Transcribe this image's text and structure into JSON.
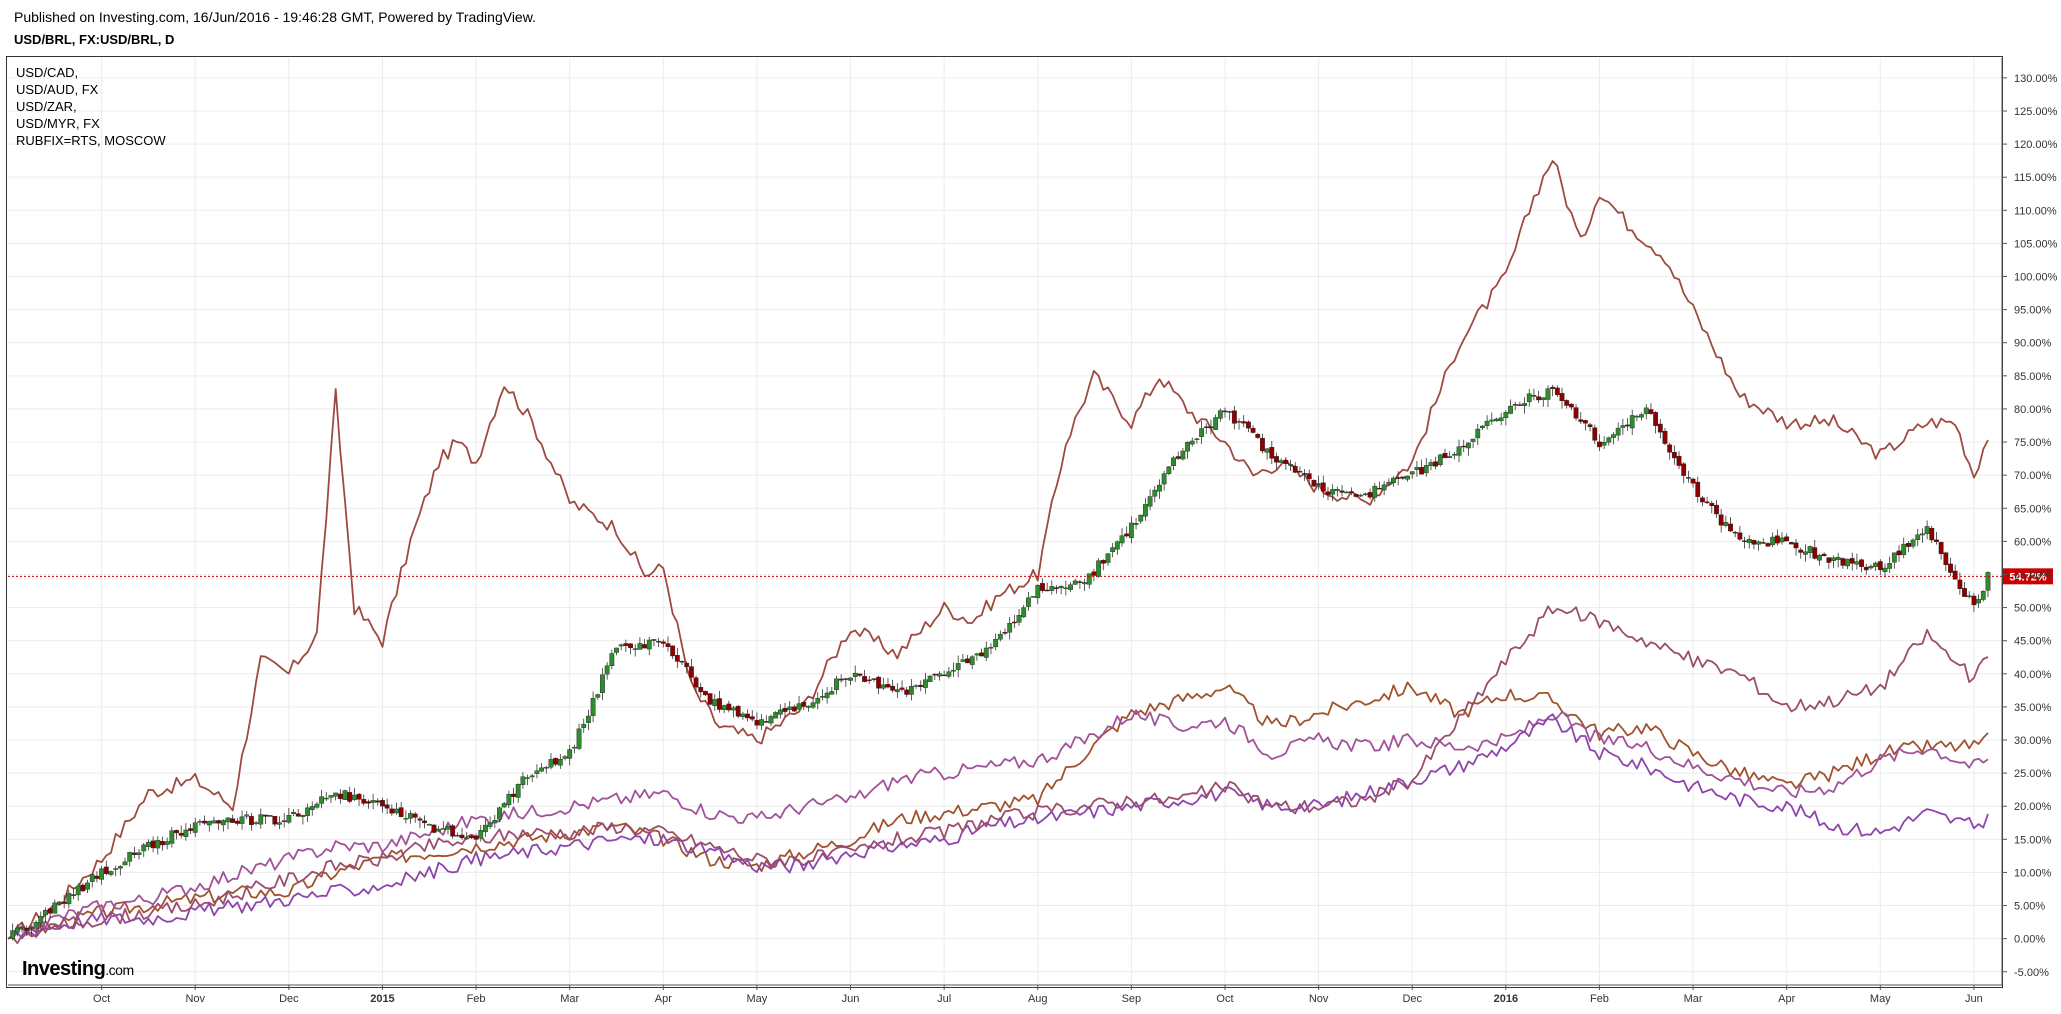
{
  "header": {
    "published": "Published on Investing.com, 16/Jun/2016 - 19:46:28 GMT, Powered by TradingView.",
    "title": "USD/BRL, FX:USD/BRL, D"
  },
  "legend": {
    "items": [
      "USD/CAD,",
      "USD/AUD, FX",
      "USD/ZAR,",
      "USD/MYR, FX",
      "RUBFIX=RTS, MOSCOW"
    ]
  },
  "logo": {
    "main": "Investing",
    "suffix": ".com"
  },
  "colors": {
    "up": "#2e8b2e",
    "down": "#8b0000",
    "series": [
      "#9e4a40",
      "#a0522d",
      "#a0529a",
      "#8e44ad",
      "#9b4d6e"
    ],
    "current_line": "#cc0000"
  },
  "chart_data": {
    "type": "line",
    "yunit": "%",
    "ylim": [
      -7,
      133
    ],
    "y_ticks": [
      -5,
      0,
      5,
      10,
      15,
      20,
      25,
      30,
      35,
      40,
      45,
      50,
      55,
      60,
      65,
      70,
      75,
      80,
      85,
      90,
      95,
      100,
      105,
      110,
      115,
      120,
      125,
      130
    ],
    "y_tick_labels": [
      "-5.00%",
      "0.00%",
      "5.00%",
      "10.00%",
      "15.00%",
      "20.00%",
      "25.00%",
      "30.00%",
      "35.00%",
      "40.00%",
      "45.00%",
      "50.00%",
      "55.00%",
      "60.00%",
      "65.00%",
      "70.00%",
      "75.00%",
      "80.00%",
      "85.00%",
      "90.00%",
      "95.00%",
      "100.00%",
      "105.00%",
      "110.00%",
      "115.00%",
      "120.00%",
      "125.00%",
      "130.00%"
    ],
    "xlim": [
      0,
      21.3
    ],
    "x_ticks": [
      {
        "pos": 1,
        "label": "Oct",
        "bold": false
      },
      {
        "pos": 2,
        "label": "Nov",
        "bold": false
      },
      {
        "pos": 3,
        "label": "Dec",
        "bold": false
      },
      {
        "pos": 4,
        "label": "2015",
        "bold": true
      },
      {
        "pos": 5,
        "label": "Feb",
        "bold": false
      },
      {
        "pos": 6,
        "label": "Mar",
        "bold": false
      },
      {
        "pos": 7,
        "label": "Apr",
        "bold": false
      },
      {
        "pos": 8,
        "label": "May",
        "bold": false
      },
      {
        "pos": 9,
        "label": "Jun",
        "bold": false
      },
      {
        "pos": 10,
        "label": "Jul",
        "bold": false
      },
      {
        "pos": 11,
        "label": "Aug",
        "bold": false
      },
      {
        "pos": 12,
        "label": "Sep",
        "bold": false
      },
      {
        "pos": 13,
        "label": "Oct",
        "bold": false
      },
      {
        "pos": 14,
        "label": "Nov",
        "bold": false
      },
      {
        "pos": 15,
        "label": "Dec",
        "bold": false
      },
      {
        "pos": 16,
        "label": "2016",
        "bold": true
      },
      {
        "pos": 17,
        "label": "Feb",
        "bold": false
      },
      {
        "pos": 18,
        "label": "Mar",
        "bold": false
      },
      {
        "pos": 19,
        "label": "Apr",
        "bold": false
      },
      {
        "pos": 20,
        "label": "May",
        "bold": false
      },
      {
        "pos": 21,
        "label": "Jun",
        "bold": false
      }
    ],
    "current_value": 54.72,
    "current_label": "54.72%",
    "main_series": {
      "x": [
        0,
        0.5,
        1,
        1.5,
        2,
        2.5,
        3,
        3.5,
        4,
        4.5,
        5,
        5.5,
        6,
        6.5,
        7,
        7.5,
        8,
        8.5,
        9,
        9.5,
        10,
        10.5,
        11,
        11.5,
        12,
        12.5,
        13,
        13.5,
        14,
        14.5,
        15,
        15.5,
        16,
        16.5,
        17,
        17.5,
        18,
        18.5,
        19,
        19.5,
        20,
        20.5,
        21,
        21.15
      ],
      "y": [
        0,
        5,
        10,
        14,
        17,
        18,
        18,
        22,
        20,
        17,
        15,
        24,
        28,
        44,
        45,
        36,
        33,
        35,
        40,
        37,
        40,
        44,
        53,
        54,
        62,
        73,
        80,
        73,
        68,
        67,
        70,
        74,
        80,
        83,
        75,
        80,
        68,
        60,
        60,
        57,
        56,
        62,
        50,
        54.7
      ]
    },
    "series": [
      {
        "x": [
          0,
          0.5,
          1,
          1.5,
          2,
          2.4,
          2.7,
          3,
          3.3,
          3.5,
          3.7,
          4,
          4.3,
          4.6,
          4.8,
          5,
          5.3,
          5.6,
          6,
          6.5,
          6.8,
          7,
          7.3,
          7.6,
          8,
          8.5,
          9,
          9.5,
          10,
          10.3,
          10.6,
          11,
          11.3,
          11.6,
          12,
          12.3,
          12.6,
          13,
          13.3,
          13.6,
          14,
          14.5,
          15,
          15.5,
          16,
          16.3,
          16.5,
          16.8,
          17,
          17.3,
          17.7,
          18,
          18.5,
          19,
          19.5,
          20,
          20.5,
          20.8,
          21,
          21.15
        ],
        "y": [
          0,
          5,
          12,
          22,
          24,
          20,
          42,
          40,
          46,
          82,
          50,
          45,
          60,
          72,
          75,
          72,
          84,
          78,
          66,
          62,
          55,
          56,
          38,
          32,
          30,
          35,
          47,
          43,
          50,
          48,
          52,
          55,
          75,
          85,
          78,
          85,
          80,
          75,
          70,
          72,
          68,
          66,
          72,
          90,
          100,
          112,
          118,
          105,
          113,
          108,
          103,
          95,
          82,
          78,
          78,
          73,
          78,
          78,
          70,
          76
        ]
      },
      {
        "x": [
          0,
          0.5,
          1,
          1.5,
          2,
          2.5,
          3,
          3.5,
          4,
          4.5,
          5,
          5.5,
          6,
          6.5,
          7,
          7.5,
          8,
          8.5,
          9,
          9.5,
          10,
          10.5,
          11,
          11.5,
          12,
          12.5,
          13,
          13.5,
          14,
          14.5,
          15,
          15.5,
          16,
          16.5,
          17,
          17.5,
          18,
          18.5,
          19,
          19.5,
          20,
          20.5,
          21,
          21.15
        ],
        "y": [
          0,
          2,
          4,
          5,
          6,
          7,
          7,
          10,
          12,
          13,
          14,
          15,
          16,
          17,
          15,
          12,
          11,
          13,
          15,
          18,
          19,
          20,
          21,
          28,
          34,
          36,
          38,
          32,
          34,
          36,
          38,
          34,
          37,
          36,
          31,
          32,
          28,
          25,
          23,
          25,
          28,
          29,
          29,
          30
        ]
      },
      {
        "x": [
          0,
          0.5,
          1,
          1.5,
          2,
          2.5,
          3,
          3.5,
          4,
          4.5,
          5,
          5.5,
          6,
          6.5,
          7,
          7.5,
          8,
          8.5,
          9,
          9.5,
          10,
          10.5,
          11,
          11.5,
          12,
          12.5,
          13,
          13.5,
          14,
          14.5,
          15,
          15.5,
          16,
          16.5,
          17,
          17.5,
          18,
          18.5,
          19,
          19.5,
          20,
          20.5,
          21,
          21.15
        ],
        "y": [
          0,
          3,
          5,
          6,
          8,
          10,
          12,
          14,
          14,
          16,
          18,
          19,
          20,
          21,
          22,
          19,
          18,
          20,
          21,
          24,
          25,
          26,
          27,
          30,
          34,
          32,
          33,
          28,
          30,
          29,
          30,
          29,
          30,
          34,
          30,
          29,
          26,
          24,
          22,
          23,
          27,
          29,
          26,
          27
        ]
      },
      {
        "x": [
          0,
          0.5,
          1,
          1.5,
          2,
          2.5,
          3,
          3.5,
          4,
          4.5,
          5,
          5.5,
          6,
          6.5,
          7,
          7.5,
          8,
          8.5,
          9,
          9.5,
          10,
          10.5,
          11,
          11.5,
          12,
          12.5,
          13,
          13.5,
          14,
          14.5,
          15,
          15.5,
          16,
          16.5,
          17,
          17.5,
          18,
          18.5,
          19,
          19.5,
          20,
          20.5,
          21,
          21.15
        ],
        "y": [
          0,
          2,
          3,
          3,
          4,
          5,
          6,
          7,
          8,
          10,
          12,
          13,
          14,
          15,
          15,
          13,
          11,
          11,
          13,
          14,
          15,
          17,
          18,
          19,
          20,
          21,
          22,
          20,
          20,
          22,
          24,
          26,
          29,
          33,
          28,
          26,
          23,
          21,
          20,
          17,
          16,
          19,
          17,
          18
        ]
      },
      {
        "x": [
          0,
          0.5,
          1,
          1.5,
          2,
          2.5,
          3,
          3.5,
          4,
          4.5,
          5,
          5.5,
          6,
          6.5,
          7,
          7.5,
          8,
          8.5,
          9,
          9.5,
          10,
          10.5,
          11,
          11.5,
          12,
          12.5,
          13,
          13.5,
          14,
          14.5,
          15,
          15.5,
          16,
          16.5,
          17,
          17.5,
          18,
          18.5,
          19,
          19.5,
          20,
          20.5,
          21,
          21.15
        ],
        "y": [
          0,
          2,
          3,
          4,
          5,
          7,
          9,
          11,
          12,
          14,
          15,
          16,
          16,
          17,
          16,
          14,
          12,
          12,
          13,
          15,
          16,
          18,
          19,
          20,
          21,
          21,
          23,
          20,
          20,
          21,
          24,
          33,
          42,
          50,
          48,
          45,
          42,
          40,
          35,
          36,
          38,
          46,
          39,
          43
        ]
      }
    ]
  }
}
